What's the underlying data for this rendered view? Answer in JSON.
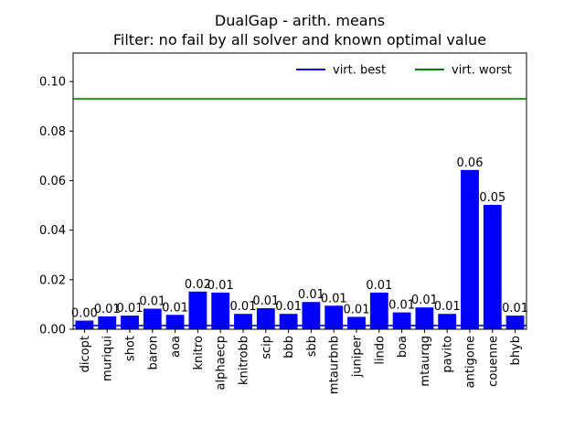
{
  "chart_data": {
    "type": "bar",
    "title": "DualGap - arith. means",
    "subtitle": "Filter: no fail by all solver and known optimal value",
    "xlabel": "",
    "ylabel": "",
    "ylim": [
      0,
      0.1115
    ],
    "yticks": [
      "0.00",
      "0.02",
      "0.04",
      "0.06",
      "0.08",
      "0.10"
    ],
    "ytick_values": [
      0,
      0.02,
      0.04,
      0.06,
      0.08,
      0.1
    ],
    "categories": [
      "dicopt",
      "muriqui",
      "shot",
      "baron",
      "aoa",
      "knitro",
      "alphaecp",
      "knitrobb",
      "scip",
      "bbb",
      "sbb",
      "mtaurbnb",
      "juniper",
      "lindo",
      "boa",
      "mtaurqg",
      "pavito",
      "antigone",
      "couenne",
      "bhyb"
    ],
    "values": [
      0.0035,
      0.0052,
      0.0055,
      0.0083,
      0.0058,
      0.0152,
      0.0148,
      0.0062,
      0.0085,
      0.0062,
      0.011,
      0.0095,
      0.005,
      0.0148,
      0.0068,
      0.0088,
      0.0062,
      0.0643,
      0.0502,
      0.0055
    ],
    "bar_labels": [
      "0.00",
      "0.01",
      "0.01",
      "0.01",
      "0.01",
      "0.02",
      "0.01",
      "0.01",
      "0.01",
      "0.01",
      "0.01",
      "0.01",
      "0.01",
      "0.01",
      "0.01",
      "0.01",
      "0.01",
      "0.06",
      "0.05",
      "0.01"
    ],
    "bar_color": "#0000ff",
    "reference_lines": [
      {
        "name": "virt. best",
        "value": 0.0015,
        "color": "#0000ff"
      },
      {
        "name": "virt. worst",
        "value": 0.093,
        "color": "#008000"
      }
    ],
    "legend_position": "top-right",
    "grid": false
  }
}
